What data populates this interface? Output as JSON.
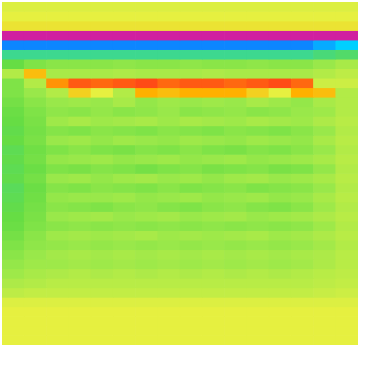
{
  "chart_data": {
    "type": "heatmap",
    "tick_labels": false,
    "color_range": [
      0,
      10
    ],
    "cells": [
      [
        6.8,
        6.8,
        6.8,
        6.8,
        6.8,
        6.8,
        6.8,
        6.8,
        6.8,
        6.8,
        6.8,
        6.8,
        6.8,
        6.8,
        6.8,
        6.8
      ],
      [
        7,
        7,
        7,
        7,
        7,
        7,
        7,
        7,
        7,
        7,
        7,
        7,
        7,
        7,
        7,
        7
      ],
      [
        7.2,
        7.2,
        7.2,
        7.2,
        7.2,
        7.2,
        7.2,
        7.2,
        7.2,
        7.2,
        7.2,
        7.2,
        7.2,
        7.2,
        7.2,
        7.2
      ],
      [
        10,
        10,
        10,
        10,
        10,
        10,
        10,
        10,
        10,
        10,
        10,
        10,
        10,
        10,
        10,
        10
      ],
      [
        1,
        1,
        1,
        1,
        1,
        1,
        1,
        1,
        1,
        1,
        1,
        1,
        1,
        1,
        1.5,
        2
      ],
      [
        3.5,
        3.5,
        3.5,
        3.5,
        3.5,
        3.5,
        3.5,
        3.5,
        3.5,
        3.5,
        3.5,
        3.5,
        3.5,
        3.5,
        3.8,
        4
      ],
      [
        4.5,
        5,
        5.2,
        5.2,
        5.2,
        5.3,
        5.2,
        5.2,
        5.3,
        5.2,
        5.2,
        5.3,
        5.2,
        5.2,
        5.5,
        5.8
      ],
      [
        6,
        7.8,
        5.8,
        5.8,
        5.8,
        5.9,
        5.8,
        5.8,
        5.8,
        5.9,
        5.8,
        5.8,
        5.8,
        5.8,
        6,
        6.2
      ],
      [
        5,
        6,
        8.2,
        8.6,
        8.5,
        8.6,
        8.7,
        8.5,
        8.6,
        8.6,
        8.5,
        8.6,
        8.7,
        8.5,
        6.5,
        6.5
      ],
      [
        5,
        5.5,
        6,
        7.5,
        7,
        6,
        8,
        7.8,
        8,
        8,
        8,
        7.5,
        7,
        8,
        7.8,
        6
      ],
      [
        4.8,
        5.2,
        5.5,
        5.6,
        5.5,
        5.8,
        5.4,
        5.6,
        5.5,
        5.6,
        5.5,
        5.8,
        5.6,
        5.4,
        5.8,
        6
      ],
      [
        4.6,
        5,
        5.3,
        5.2,
        5.4,
        5.2,
        5.3,
        5.5,
        5.2,
        5.3,
        5.4,
        5.2,
        5.3,
        5.5,
        5.6,
        6
      ],
      [
        4.5,
        4.9,
        5.6,
        5.8,
        5.6,
        5.7,
        5.8,
        5.6,
        5.8,
        5.7,
        5.6,
        5.8,
        5.7,
        5.6,
        5.9,
        6.1
      ],
      [
        4.4,
        4.8,
        5.1,
        5,
        5.2,
        5.1,
        5,
        5.2,
        5.1,
        5,
        5.2,
        5.1,
        5,
        5.2,
        5.5,
        6
      ],
      [
        4.5,
        4.9,
        5.5,
        5.6,
        5.4,
        5.6,
        5.5,
        5.4,
        5.6,
        5.5,
        5.4,
        5.6,
        5.5,
        5.4,
        5.8,
        6.1
      ],
      [
        4.3,
        4.7,
        5,
        5.2,
        5,
        4.9,
        5.1,
        5,
        5.2,
        5,
        4.9,
        5.1,
        5,
        5.2,
        5.5,
        6
      ],
      [
        4.4,
        4.8,
        5.4,
        5.5,
        5.6,
        5.4,
        5.5,
        5.6,
        5.4,
        5.5,
        5.6,
        5.4,
        5.5,
        5.6,
        5.8,
        6.1
      ],
      [
        4.3,
        4.6,
        5,
        4.9,
        5.1,
        5,
        4.8,
        5,
        5.1,
        4.9,
        5,
        5.1,
        4.9,
        5,
        5.4,
        6
      ],
      [
        4.4,
        4.8,
        5.5,
        5.6,
        5.4,
        5.6,
        5.7,
        5.5,
        5.6,
        5.4,
        5.6,
        5.7,
        5.5,
        5.6,
        5.8,
        6.1
      ],
      [
        4.2,
        4.6,
        5.1,
        5,
        5.2,
        5.1,
        5,
        5.2,
        5,
        5.1,
        5.2,
        5,
        5.1,
        5.2,
        5.5,
        6
      ],
      [
        4.3,
        4.7,
        5.4,
        5.5,
        5.5,
        5.6,
        5.4,
        5.5,
        5.6,
        5.4,
        5.5,
        5.6,
        5.4,
        5.5,
        5.8,
        6.1
      ],
      [
        4.4,
        4.8,
        5.2,
        5.1,
        5,
        5.2,
        5.3,
        5.1,
        5,
        5.2,
        5.3,
        5.1,
        5,
        5.2,
        5.6,
        6
      ],
      [
        4.5,
        4.9,
        5.5,
        5.6,
        5.7,
        5.5,
        5.6,
        5.7,
        5.5,
        5.6,
        5.7,
        5.5,
        5.6,
        5.7,
        5.9,
        6.1
      ],
      [
        4.6,
        5,
        5.2,
        5.3,
        5.2,
        5.3,
        5.2,
        5.3,
        5.2,
        5.3,
        5.2,
        5.3,
        5.2,
        5.3,
        5.6,
        6
      ],
      [
        4.8,
        5.2,
        5.6,
        5.7,
        5.6,
        5.7,
        5.8,
        5.6,
        5.7,
        5.6,
        5.7,
        5.8,
        5.6,
        5.7,
        5.9,
        6.1
      ],
      [
        5,
        5.3,
        5.4,
        5.5,
        5.4,
        5.5,
        5.4,
        5.5,
        5.4,
        5.5,
        5.4,
        5.5,
        5.4,
        5.5,
        5.7,
        6
      ],
      [
        5.2,
        5.5,
        5.7,
        5.8,
        5.7,
        5.8,
        5.7,
        5.8,
        5.7,
        5.8,
        5.7,
        5.8,
        5.7,
        5.8,
        5.9,
        6.1
      ],
      [
        5.4,
        5.6,
        5.6,
        5.7,
        5.6,
        5.7,
        5.6,
        5.7,
        5.6,
        5.7,
        5.6,
        5.7,
        5.6,
        5.7,
        5.9,
        6.1
      ],
      [
        5.6,
        5.8,
        5.9,
        6,
        5.9,
        6,
        5.9,
        6,
        5.9,
        6,
        5.9,
        6,
        5.9,
        6,
        6.1,
        6.2
      ],
      [
        5.9,
        6,
        6.1,
        6.1,
        6.1,
        6.1,
        6.1,
        6.1,
        6.1,
        6.1,
        6.1,
        6.1,
        6.1,
        6.1,
        6.2,
        6.3
      ],
      [
        6.2,
        6.3,
        6.3,
        6.3,
        6.3,
        6.3,
        6.3,
        6.3,
        6.3,
        6.3,
        6.3,
        6.3,
        6.3,
        6.3,
        6.4,
        6.5
      ],
      [
        6.8,
        6.8,
        6.8,
        6.8,
        6.8,
        6.8,
        6.8,
        6.8,
        6.8,
        6.8,
        6.8,
        6.8,
        6.8,
        6.8,
        6.8,
        6.8
      ],
      [
        7,
        7,
        7,
        7,
        7,
        7,
        7,
        7,
        7,
        7,
        7,
        7,
        7,
        7,
        7,
        7
      ],
      [
        7,
        7,
        7,
        7,
        7,
        7,
        7,
        7,
        7,
        7,
        7,
        7,
        7,
        7,
        7,
        7
      ],
      [
        7,
        7,
        7,
        7,
        7,
        7,
        7,
        7,
        7,
        7,
        7,
        7,
        7,
        7,
        7,
        7
      ],
      [
        7,
        7,
        7,
        7,
        7,
        7,
        7,
        7,
        7,
        7,
        7,
        7,
        7,
        7,
        7,
        7
      ]
    ]
  }
}
